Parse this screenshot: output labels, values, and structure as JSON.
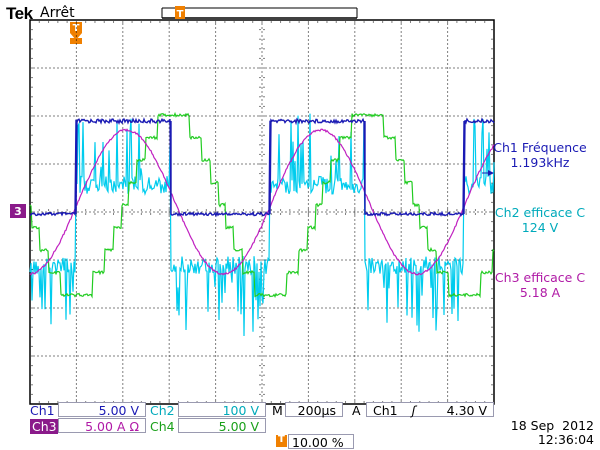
{
  "header": {
    "brand": "Tek",
    "state": "Arrêt"
  },
  "measurements": [
    {
      "label": "Ch1 Fréquence",
      "value": "1.193kHz",
      "color": "#1a1ab4"
    },
    {
      "label": "Ch2 efficace C",
      "value": "124 V",
      "color": "#00aabb"
    },
    {
      "label": "Ch3 efficace C",
      "value": "5.18 A",
      "color": "#b01aa6"
    }
  ],
  "markers": {
    "ch3_marker": "3",
    "trigger_marker": "T"
  },
  "status": {
    "ch1_label": "Ch1",
    "ch1_scale": "5.00 V",
    "ch2_label": "Ch2",
    "ch2_scale": "100 V",
    "ch3_label": "Ch3",
    "ch3_scale": "5.00 A Ω",
    "ch4_label": "Ch4",
    "ch4_scale": "5.00 V",
    "timebase_label": "M",
    "timebase": "200µs",
    "trigger_label": "A",
    "trigger_source": "Ch1",
    "trigger_slope": "ʃ",
    "trigger_level": "4.30 V",
    "trigger_position_icon": "trigger-position-icon",
    "trigger_position": "10.00 %",
    "date": "18 Sep  2012",
    "time": "12:36:04"
  },
  "colors": {
    "ch1": "#1a1ab4",
    "ch2": "#00ccee",
    "ch3": "#c020c0",
    "ch4": "#22cc22",
    "trigger": "#f08000",
    "ch3_badge": "#8a1a8a"
  }
}
